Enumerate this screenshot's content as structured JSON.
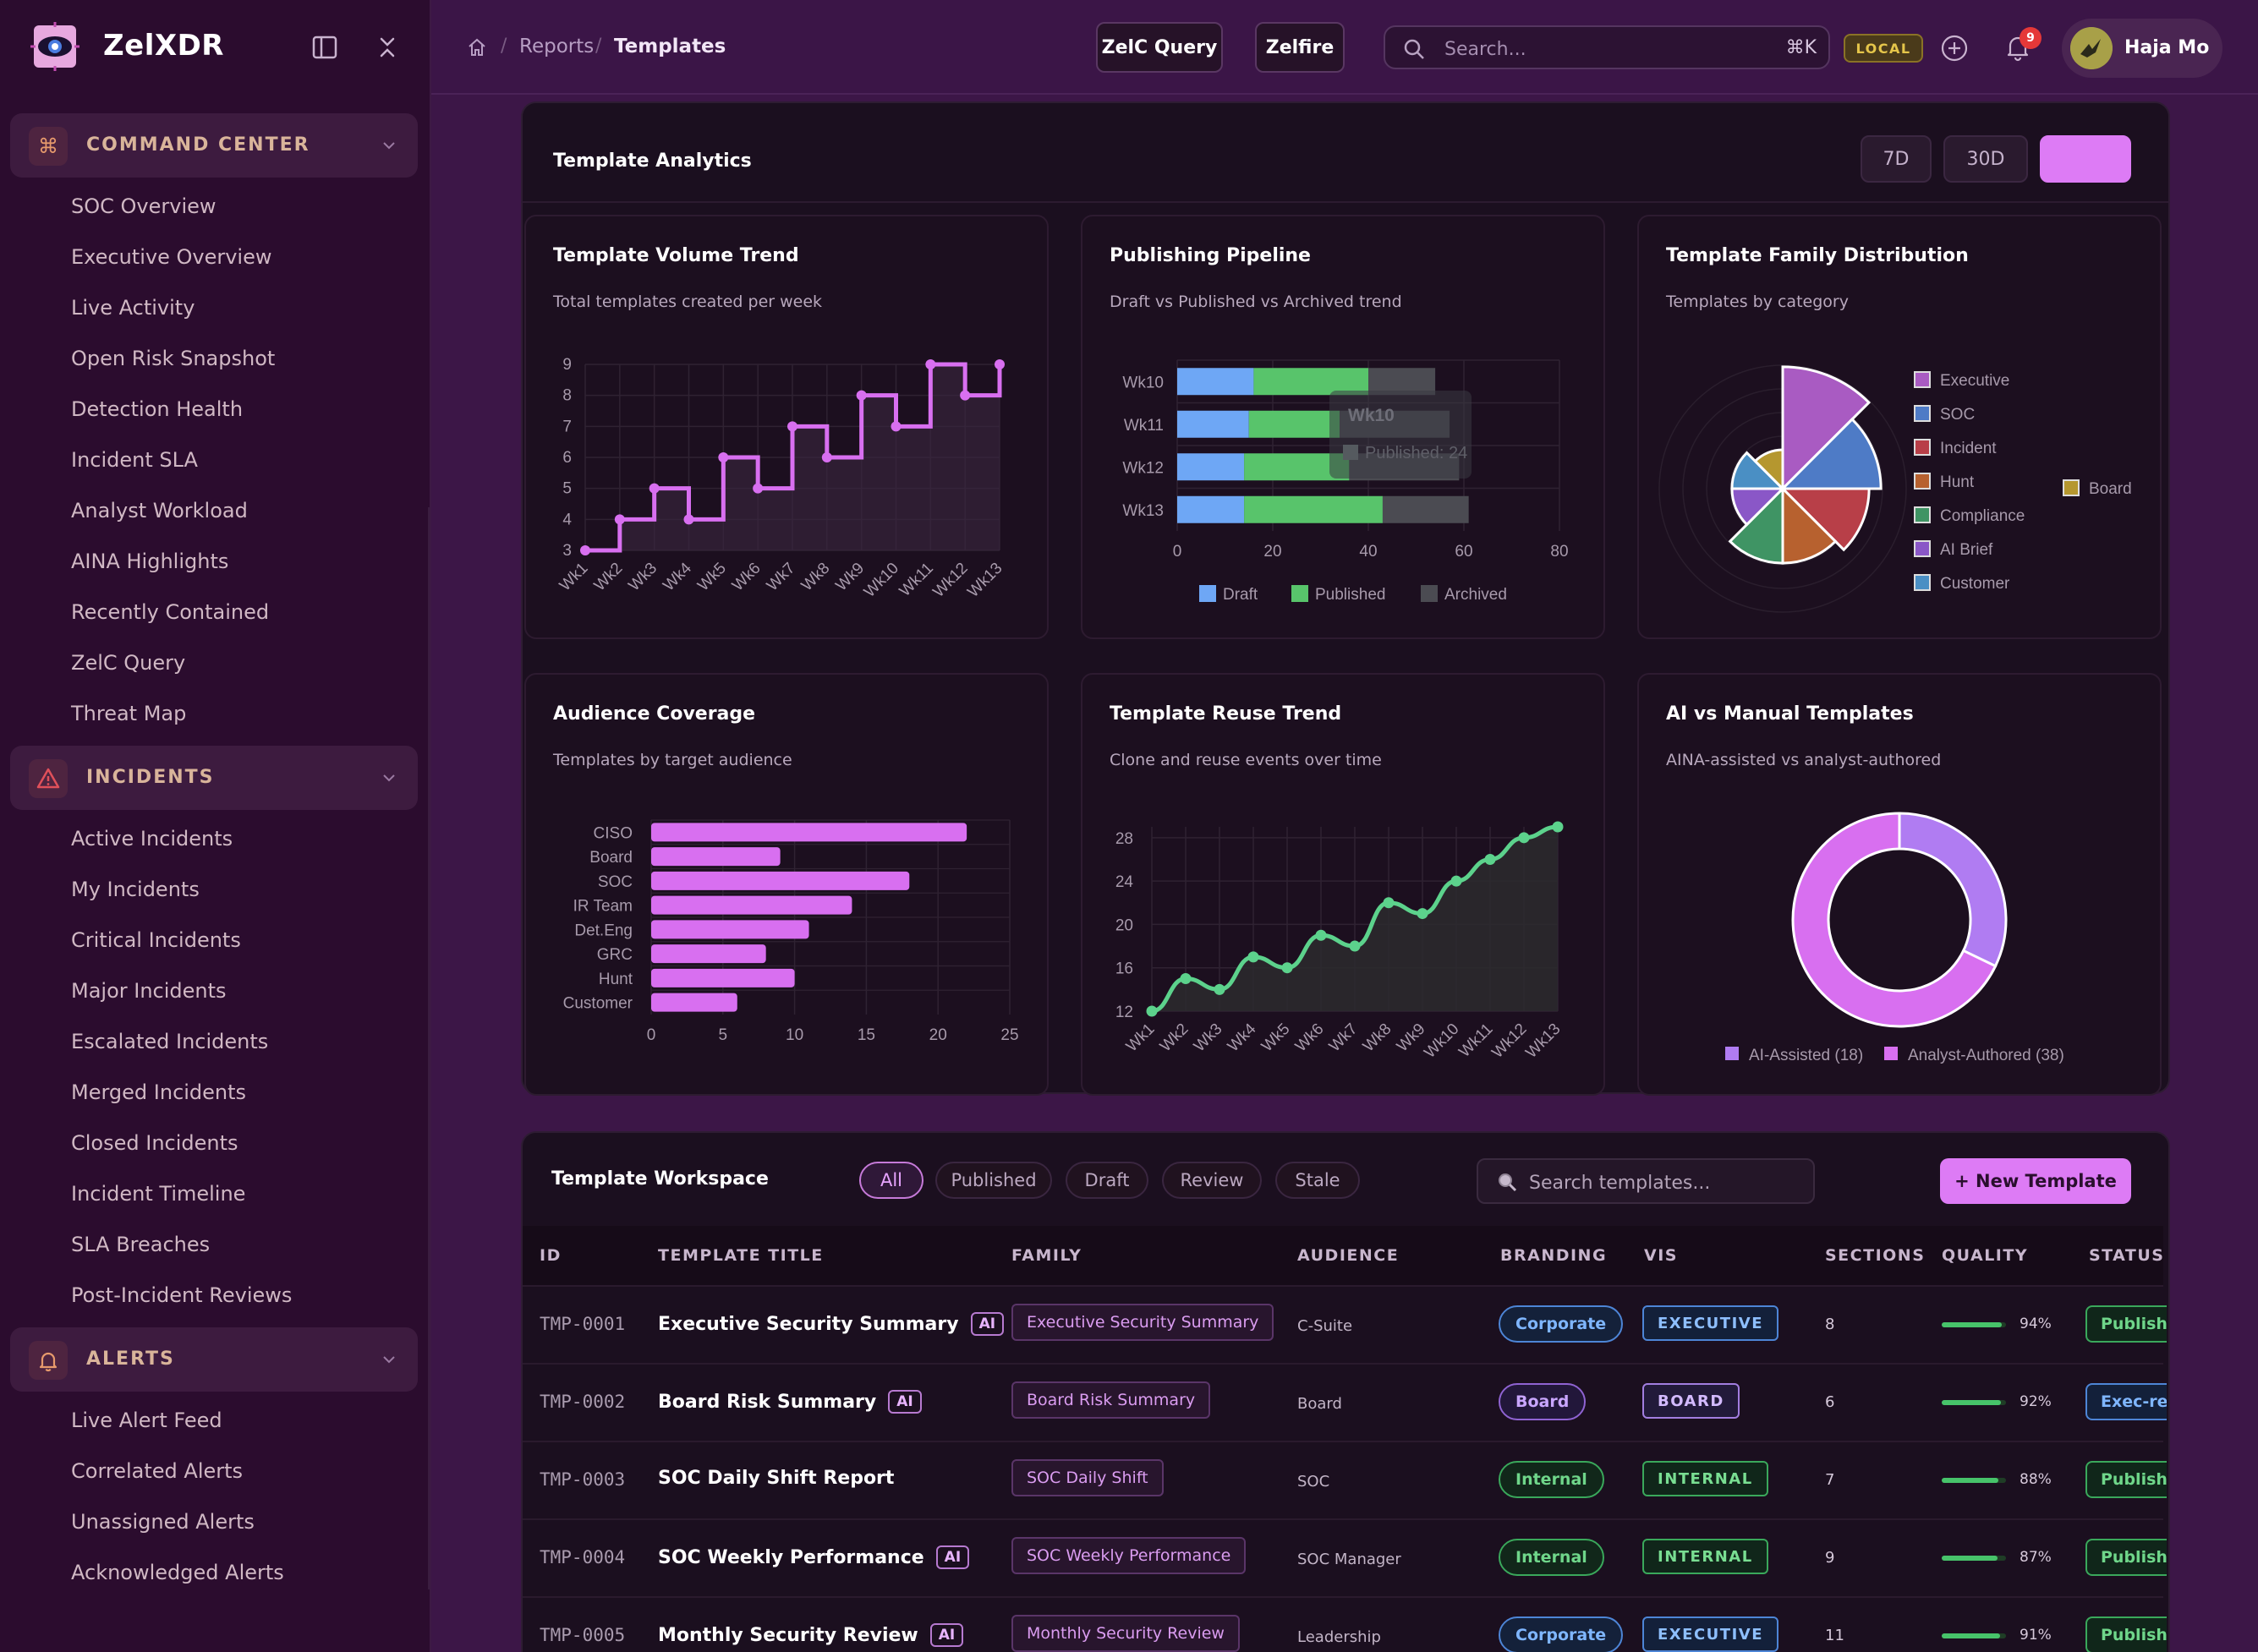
{
  "app": {
    "name": "ZelXDR"
  },
  "sidebar": {
    "groups": [
      {
        "label": "COMMAND CENTER",
        "icon": "command-icon",
        "items": [
          "SOC Overview",
          "Executive Overview",
          "Live Activity",
          "Open Risk Snapshot",
          "Detection Health",
          "Incident SLA",
          "Analyst Workload",
          "AINA Highlights",
          "Recently Contained",
          "ZelC Query",
          "Threat Map"
        ]
      },
      {
        "label": "INCIDENTS",
        "icon": "warning-triangle-icon",
        "items": [
          "Active Incidents",
          "My Incidents",
          "Critical Incidents",
          "Major Incidents",
          "Escalated Incidents",
          "Merged Incidents",
          "Closed Incidents",
          "Incident Timeline",
          "SLA Breaches",
          "Post-Incident Reviews"
        ]
      },
      {
        "label": "ALERTS",
        "icon": "bell-icon",
        "items": [
          "Live Alert Feed",
          "Correlated Alerts",
          "Unassigned Alerts",
          "Acknowledged Alerts"
        ]
      }
    ]
  },
  "topbar": {
    "breadcrumb": [
      "Reports",
      "Templates"
    ],
    "buttons": {
      "zelc_query": "ZelC Query",
      "zelfire": "Zelfire"
    },
    "search": {
      "placeholder": "Search...",
      "shortcut": "⌘K"
    },
    "env_badge": "LOCAL",
    "notifications": "9",
    "user": "Haja Mo"
  },
  "analytics": {
    "title": "Template Analytics",
    "ranges": [
      "7D",
      "30D",
      ""
    ],
    "cards": {
      "volume": {
        "title": "Template Volume Trend",
        "subtitle": "Total templates created per week"
      },
      "pipeline": {
        "title": "Publishing Pipeline",
        "subtitle": "Draft vs Published vs Archived trend",
        "tooltip_title": "Wk10",
        "tooltip_value": "Published: 24"
      },
      "family": {
        "title": "Template Family Distribution",
        "subtitle": "Templates by category"
      },
      "audience": {
        "title": "Audience Coverage",
        "subtitle": "Templates by target audience"
      },
      "reuse": {
        "title": "Template Reuse Trend",
        "subtitle": "Clone and reuse events over time"
      },
      "ai": {
        "title": "AI vs Manual Templates",
        "subtitle": "AINA-assisted vs analyst-authored"
      }
    }
  },
  "chart_data": [
    {
      "type": "line",
      "title": "Template Volume Trend",
      "x": [
        "Wk1",
        "Wk2",
        "Wk3",
        "Wk4",
        "Wk5",
        "Wk6",
        "Wk7",
        "Wk8",
        "Wk9",
        "Wk10",
        "Wk11",
        "Wk12",
        "Wk13"
      ],
      "values": [
        3,
        4,
        5,
        4,
        6,
        5,
        7,
        6,
        8,
        7,
        9,
        8,
        9
      ],
      "ylim": [
        3,
        9
      ],
      "yticks": [
        3,
        4,
        5,
        6,
        7,
        8,
        9
      ],
      "step": true,
      "color": "#d86ff0"
    },
    {
      "type": "bar",
      "title": "Publishing Pipeline",
      "orientation": "horizontal",
      "stacked": true,
      "categories": [
        "Wk10",
        "Wk11",
        "Wk12",
        "Wk13"
      ],
      "series": [
        {
          "name": "Draft",
          "values": [
            16,
            15,
            14,
            14
          ],
          "color": "#6ea7f5"
        },
        {
          "name": "Published",
          "values": [
            24,
            19,
            22,
            29
          ],
          "color": "#58c46b"
        },
        {
          "name": "Archived",
          "values": [
            14,
            23,
            23,
            18
          ],
          "color": "#4b4b52"
        }
      ],
      "xlim": [
        0,
        80
      ],
      "xticks": [
        0,
        20,
        40,
        60,
        80
      ]
    },
    {
      "type": "pie",
      "title": "Template Family Distribution",
      "style": "polar-area",
      "categories": [
        "Executive",
        "SOC",
        "Incident",
        "Hunt",
        "Compliance",
        "AI Brief",
        "Customer",
        "Board"
      ],
      "values": [
        10,
        8,
        7,
        6,
        6,
        4,
        4,
        3
      ],
      "colors": [
        "#a95bc2",
        "#4e7bc6",
        "#b83f48",
        "#b7612f",
        "#3f9464",
        "#8a57c7",
        "#4a8fc4",
        "#b5972f"
      ]
    },
    {
      "type": "bar",
      "title": "Audience Coverage",
      "orientation": "horizontal",
      "categories": [
        "CISO",
        "Board",
        "SOC",
        "IR Team",
        "Det.Eng",
        "GRC",
        "Hunt",
        "Customer"
      ],
      "values": [
        22,
        9,
        18,
        14,
        11,
        8,
        10,
        6
      ],
      "xlim": [
        0,
        25
      ],
      "xticks": [
        0,
        5,
        10,
        15,
        20,
        25
      ],
      "color": "#d86ff0"
    },
    {
      "type": "area",
      "title": "Template Reuse Trend",
      "x": [
        "Wk1",
        "Wk2",
        "Wk3",
        "Wk4",
        "Wk5",
        "Wk6",
        "Wk7",
        "Wk8",
        "Wk9",
        "Wk10",
        "Wk11",
        "Wk12",
        "Wk13"
      ],
      "values": [
        12,
        15,
        14,
        17,
        16,
        19,
        18,
        22,
        21,
        24,
        26,
        28,
        29
      ],
      "ylim": [
        12,
        29
      ],
      "yticks": [
        12,
        16,
        20,
        24,
        28
      ],
      "color": "#5cd28c"
    },
    {
      "type": "pie",
      "title": "AI vs Manual Templates",
      "style": "donut",
      "categories": [
        "AI-Assisted (18)",
        "Analyst-Authored (38)"
      ],
      "values": [
        18,
        38
      ],
      "colors": [
        "#b07cf2",
        "#d86ff0"
      ]
    }
  ],
  "workspace": {
    "title": "Template Workspace",
    "filters": [
      "All",
      "Published",
      "Draft",
      "Review",
      "Stale"
    ],
    "search_placeholder": "Search templates...",
    "new_button": "+ New Template",
    "columns": [
      "ID",
      "TEMPLATE TITLE",
      "FAMILY",
      "AUDIENCE",
      "BRANDING",
      "VIS",
      "SECTIONS",
      "QUALITY",
      "STATUS"
    ],
    "rows": [
      {
        "id": "TMP-0001",
        "title": "Executive Security Summary",
        "ai": "AI",
        "family": "Executive Security Summary",
        "audience": "C-Suite",
        "branding": "Corporate",
        "vis": "EXECUTIVE",
        "sections": "8",
        "quality": 94,
        "quality_label": "94%",
        "status": "Published"
      },
      {
        "id": "TMP-0002",
        "title": "Board Risk Summary",
        "ai": "AI",
        "family": "Board Risk Summary",
        "audience": "Board",
        "branding": "Board",
        "vis": "BOARD",
        "sections": "6",
        "quality": 92,
        "quality_label": "92%",
        "status": "Exec-ready"
      },
      {
        "id": "TMP-0003",
        "title": "SOC Daily Shift Report",
        "ai": "",
        "family": "SOC Daily Shift",
        "audience": "SOC",
        "branding": "Internal",
        "vis": "INTERNAL",
        "sections": "7",
        "quality": 88,
        "quality_label": "88%",
        "status": "Published"
      },
      {
        "id": "TMP-0004",
        "title": "SOC Weekly Performance",
        "ai": "AI",
        "family": "SOC Weekly Performance",
        "audience": "SOC Manager",
        "branding": "Internal",
        "vis": "INTERNAL",
        "sections": "9",
        "quality": 87,
        "quality_label": "87%",
        "status": "Published"
      },
      {
        "id": "TMP-0005",
        "title": "Monthly Security Review",
        "ai": "AI",
        "family": "Monthly Security Review",
        "audience": "Leadership",
        "branding": "Corporate",
        "vis": "EXECUTIVE",
        "sections": "11",
        "quality": 91,
        "quality_label": "91%",
        "status": "Published"
      }
    ]
  }
}
